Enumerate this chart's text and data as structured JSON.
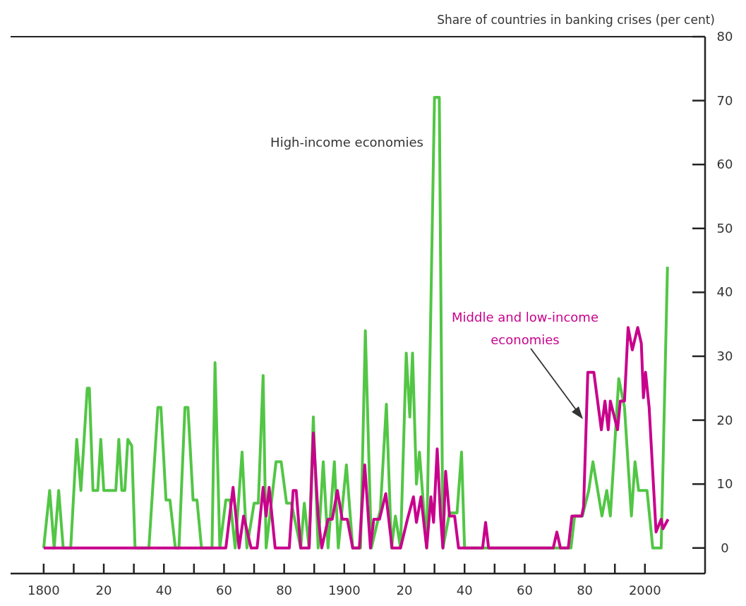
{
  "chart_data": {
    "type": "line",
    "ylabel": "Share of countries in banking crises (per cent)",
    "xlim": [
      1789,
      2020
    ],
    "ylim": [
      -4,
      80
    ],
    "xticks": [
      1800,
      {
        "value": 1810,
        "label": null
      },
      {
        "value": 1820,
        "label": "20"
      },
      {
        "value": 1830,
        "label": null
      },
      {
        "value": 1840,
        "label": "40"
      },
      {
        "value": 1850,
        "label": null
      },
      {
        "value": 1860,
        "label": "60"
      },
      {
        "value": 1870,
        "label": null
      },
      {
        "value": 1880,
        "label": "80"
      },
      {
        "value": 1890,
        "label": null
      },
      1900,
      {
        "value": 1910,
        "label": null
      },
      {
        "value": 1920,
        "label": "20"
      },
      {
        "value": 1930,
        "label": null
      },
      {
        "value": 1940,
        "label": "40"
      },
      {
        "value": 1950,
        "label": null
      },
      {
        "value": 1960,
        "label": "60"
      },
      {
        "value": 1970,
        "label": null
      },
      {
        "value": 1980,
        "label": "80"
      },
      {
        "value": 1990,
        "label": null
      },
      2000
    ],
    "yticks": [
      0,
      10,
      20,
      30,
      40,
      50,
      60,
      70,
      80
    ],
    "grid": false,
    "legend": false,
    "marker": "none",
    "line_style": "solid",
    "series": [
      {
        "name": "High-income economies",
        "color": "#52c645",
        "x": [
          1800,
          1802,
          1803.5,
          1805,
          1806.5,
          1809,
          1811,
          1812.4,
          1814.5,
          1815.2,
          1816.4,
          1818,
          1819,
          1820,
          1824,
          1825,
          1826,
          1827,
          1828,
          1829.3,
          1830.4,
          1835,
          1838,
          1839,
          1840.7,
          1842,
          1843.8,
          1845,
          1847,
          1848,
          1849.7,
          1851,
          1852.5,
          1856,
          1857,
          1858.6,
          1860.6,
          1862,
          1863.7,
          1866,
          1867.6,
          1870,
          1871.4,
          1873,
          1874,
          1877.3,
          1879,
          1880.8,
          1882.4,
          1885.5,
          1886.7,
          1888.3,
          1889.7,
          1891.3,
          1893,
          1894.6,
          1896.7,
          1898,
          1900.7,
          1902.8,
          1905.4,
          1907,
          1909,
          1912,
          1914,
          1915.7,
          1917,
          1918.7,
          1920.6,
          1921.8,
          1922.7,
          1924,
          1925,
          1927.4,
          1930,
          1931.6,
          1932.8,
          1935,
          1937.5,
          1939,
          1940,
          1975.4,
          1976.6,
          1979.2,
          1981.3,
          1982.7,
          1984.3,
          1985.7,
          1987.3,
          1988.5,
          1991.3,
          1993.2,
          1995.5,
          1996.7,
          1997.9,
          2000.7,
          2002.6,
          2005.4,
          2007.5
        ],
        "values": [
          0,
          9,
          0,
          9,
          0,
          0,
          17,
          9,
          25,
          25,
          9,
          9,
          17,
          9,
          9,
          17,
          9,
          9,
          17,
          16,
          0,
          0,
          22,
          22,
          7.5,
          7.5,
          0,
          0,
          22,
          22,
          7.5,
          7.5,
          0,
          0,
          29,
          0,
          7.5,
          7.5,
          0,
          15,
          0,
          7,
          7,
          27,
          0,
          13.5,
          13.5,
          7,
          7,
          0,
          7,
          0,
          20.5,
          0,
          13.5,
          0,
          13.5,
          0,
          13,
          0,
          0,
          34,
          0,
          6,
          22.5,
          0,
          5,
          0,
          30.5,
          20.5,
          30.5,
          10,
          15,
          0,
          70.5,
          70.5,
          0,
          5.5,
          5.5,
          15,
          0,
          0,
          5,
          5,
          9,
          13.5,
          9,
          5,
          9,
          5,
          26.5,
          22,
          5,
          13.5,
          9,
          9,
          0,
          0,
          44
        ]
      },
      {
        "name": "Middle and low-income economies",
        "color": "#c8008c",
        "x": [
          1800,
          1860.6,
          1863,
          1865,
          1866.5,
          1869,
          1871,
          1873,
          1874,
          1875,
          1877,
          1881.7,
          1883,
          1884,
          1885.5,
          1888.3,
          1889.7,
          1891.3,
          1892.5,
          1894.6,
          1896,
          1897.7,
          1899.3,
          1901,
          1902.8,
          1905,
          1906.8,
          1908.7,
          1909.8,
          1911.7,
          1913.8,
          1915.9,
          1918.7,
          1921,
          1923,
          1924,
          1925.5,
          1927.4,
          1928.8,
          1929.7,
          1930.9,
          1932,
          1932.8,
          1933.7,
          1935,
          1936.7,
          1938,
          1946,
          1947,
          1948,
          1969.5,
          1970.7,
          1971.9,
          1974.5,
          1975.7,
          1979,
          1979.6,
          1981,
          1983,
          1985.5,
          1986.7,
          1987.8,
          1988.5,
          1990.9,
          1991.8,
          1993.2,
          1994.4,
          1995.8,
          1997.6,
          1998.8,
          1999.5,
          2000.2,
          2001.4,
          2003.7,
          2005.4,
          2006,
          2007.7
        ],
        "values": [
          0,
          0,
          9.5,
          0,
          5,
          0,
          0,
          9.5,
          5,
          9.5,
          0,
          0,
          9,
          9,
          0,
          0,
          18,
          5,
          0,
          4.5,
          4.5,
          9,
          4.5,
          4.5,
          0,
          0,
          13,
          0,
          4.5,
          4.5,
          8.5,
          0,
          0,
          4.5,
          8,
          4,
          8,
          0,
          8,
          4,
          15.5,
          5,
          0,
          12,
          5,
          5,
          0,
          0,
          4,
          0,
          0,
          2.5,
          0,
          0,
          5,
          5,
          6.5,
          27.5,
          27.5,
          18.5,
          23,
          18.5,
          23,
          18.5,
          23,
          23,
          34.5,
          31,
          34.5,
          32,
          23.5,
          27.5,
          22,
          2.5,
          4.5,
          3,
          4.5
        ]
      }
    ]
  }
}
